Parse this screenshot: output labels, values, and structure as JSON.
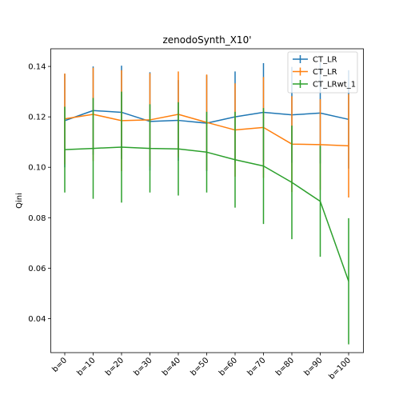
{
  "chart_data": {
    "type": "line",
    "title": "zenodoSynth_X10'",
    "xlabel": "",
    "ylabel": "Qini",
    "categories": [
      "b=0",
      "b=10",
      "b=20",
      "b=30",
      "b=40",
      "b=50",
      "b=60",
      "b=70",
      "b=80",
      "b=90",
      "b=100"
    ],
    "ylim": [
      0.0265,
      0.147
    ],
    "yticks": [
      0.04,
      0.06,
      0.08,
      0.1,
      0.12,
      0.14
    ],
    "ytick_labels": [
      "0.04",
      "0.06",
      "0.08",
      "0.10",
      "0.12",
      "0.14"
    ],
    "grid": false,
    "legend_position": "top-right",
    "error_bars": true,
    "series": [
      {
        "name": "CT_LR",
        "color": "#1f77b4",
        "values": [
          0.1185,
          0.1225,
          0.1218,
          0.1182,
          0.1186,
          0.1175,
          0.12,
          0.1218,
          0.1208,
          0.1215,
          0.119
        ],
        "errors": [
          0.0185,
          0.0175,
          0.0185,
          0.0195,
          0.016,
          0.019,
          0.018,
          0.0195,
          0.019,
          0.02,
          0.0195
        ]
      },
      {
        "name": "CT_LR",
        "color": "#ff7f0e",
        "values": [
          0.1192,
          0.121,
          0.1185,
          0.1188,
          0.121,
          0.1178,
          0.1148,
          0.1158,
          0.1092,
          0.109,
          0.1085
        ],
        "errors": [
          0.018,
          0.0185,
          0.02,
          0.0185,
          0.017,
          0.019,
          0.0185,
          0.02,
          0.019,
          0.018,
          0.0205
        ]
      },
      {
        "name": "CT_LRwt_1",
        "color": "#2ca02c",
        "values": [
          0.107,
          0.1075,
          0.108,
          0.1075,
          0.1073,
          0.106,
          0.103,
          0.1005,
          0.094,
          0.0865,
          0.0548
        ],
        "errors": [
          0.017,
          0.02,
          0.022,
          0.0175,
          0.0185,
          0.016,
          0.019,
          0.023,
          0.0225,
          0.022,
          0.025
        ]
      }
    ]
  }
}
